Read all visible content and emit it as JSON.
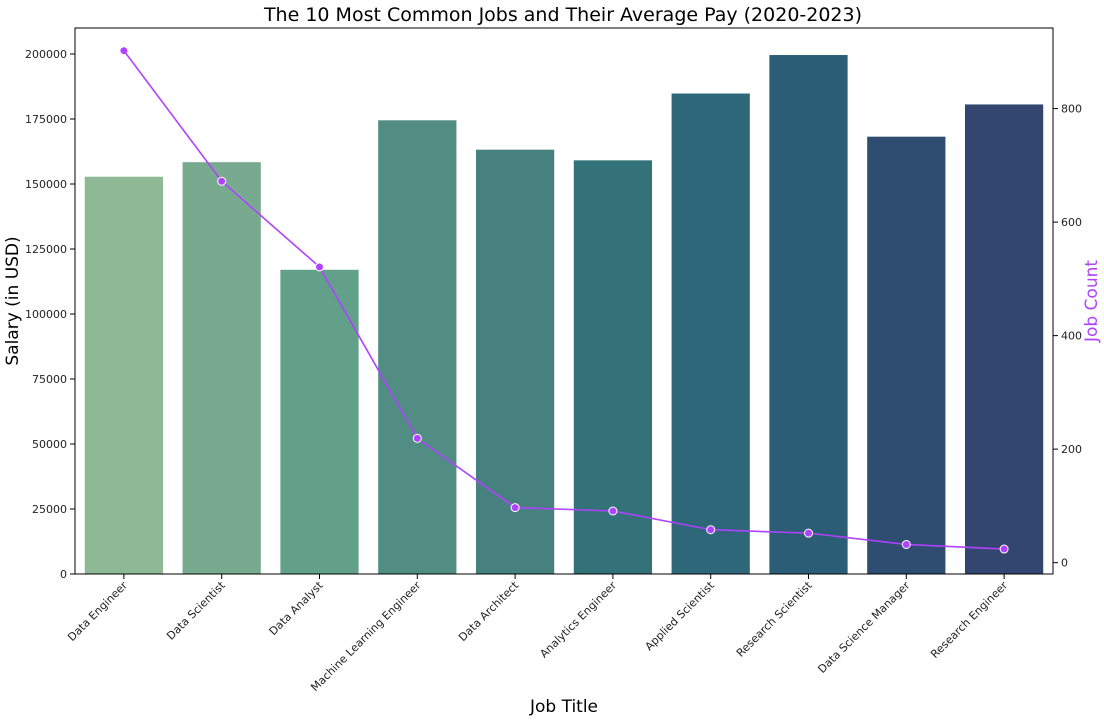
{
  "chart_data": {
    "type": "bar",
    "title": "The 10 Most Common Jobs and Their Average Pay (2020-2023)",
    "xlabel": "Job Title",
    "ylabel": "Salary (in USD)",
    "y2label": "Job Count",
    "categories": [
      "Data Engineer",
      "Data Scientist",
      "Data Analyst",
      "Machine Learning Engineer",
      "Data Architect",
      "Analytics Engineer",
      "Applied Scientist",
      "Research Scientist",
      "Data Science Manager",
      "Research Engineer"
    ],
    "series": [
      {
        "type": "bar",
        "axis": "left",
        "values": [
          152800,
          158400,
          117000,
          174500,
          163200,
          159100,
          184800,
          199600,
          168200,
          180600
        ]
      },
      {
        "type": "line",
        "axis": "right",
        "color": "#b042ff",
        "values": [
          902,
          672,
          521,
          219,
          97,
          91,
          58,
          52,
          32,
          24
        ]
      }
    ],
    "bar_colors": [
      "#8fb894",
      "#78aa8f",
      "#62a08a",
      "#528d84",
      "#46817f",
      "#34727a",
      "#2d6779",
      "#2b5d77",
      "#2e4d70",
      "#33466f"
    ],
    "ylim": [
      0,
      210000
    ],
    "y2lim": [
      -20,
      942
    ],
    "yticks": [
      "0",
      "25000",
      "50000",
      "75000",
      "100000",
      "125000",
      "150000",
      "175000",
      "200000"
    ],
    "y2ticks": [
      "0",
      "200",
      "400",
      "600",
      "800"
    ],
    "grid": false,
    "legend": "none"
  }
}
